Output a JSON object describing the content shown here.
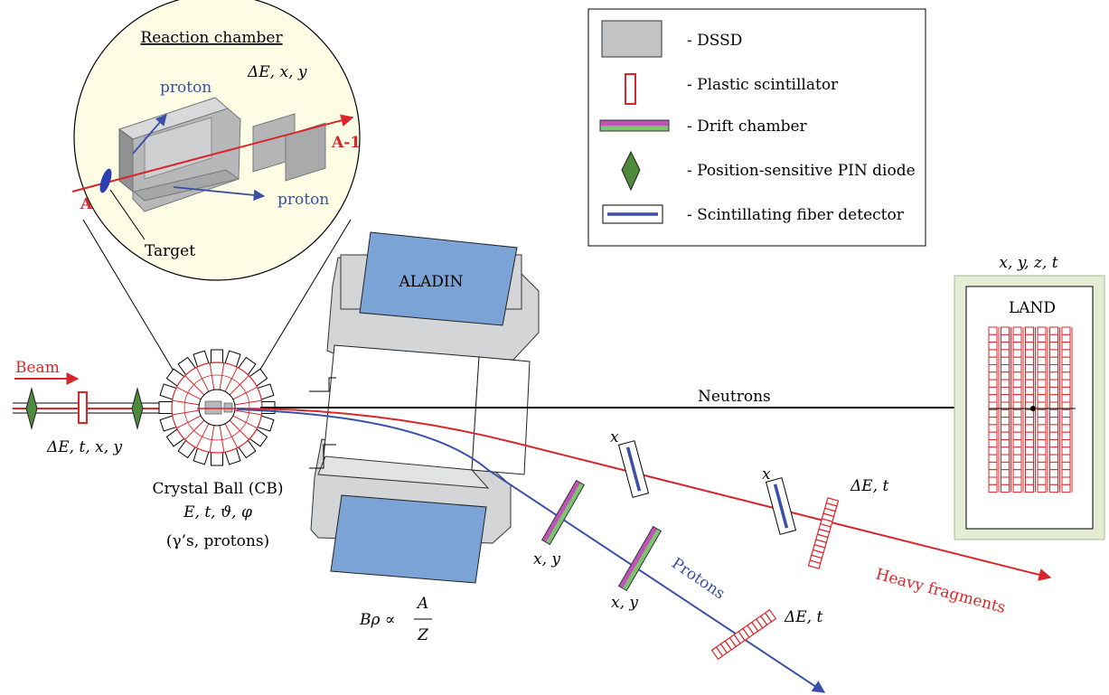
{
  "inset": {
    "title": "Reaction chamber",
    "proton_label": "proton",
    "de_xy_label": "ΔE, x, y",
    "beam_in_label": "A",
    "beam_out_label": "A-1",
    "target_label": "Target"
  },
  "legend": {
    "items": [
      {
        "label": "- DSSD"
      },
      {
        "label": "- Plastic scintillator"
      },
      {
        "label": "- Drift chamber"
      },
      {
        "label": "- Position-sensitive PIN diode"
      },
      {
        "label": "- Scintillating fiber detector"
      }
    ]
  },
  "beam": {
    "label": "Beam",
    "detectors_label": "ΔE, t, x, y"
  },
  "crystal_ball": {
    "name": "Crystal Ball (CB)",
    "quantities": "E, t, ϑ, φ",
    "particles": "(γ’s, protons)"
  },
  "magnet": {
    "name": "ALADIN",
    "rigidity_lhs": "Bρ ∝",
    "rigidity_num": "A",
    "rigidity_den": "Z"
  },
  "land": {
    "name": "LAND",
    "quantities": "x, y, z, t"
  },
  "tracks": {
    "neutrons": "Neutrons",
    "heavy_fragments": "Heavy fragments",
    "protons": "Protons"
  },
  "detector_labels": {
    "fiber_1_x": "x",
    "fiber_2_x": "x",
    "drift_1_xy": "x, y",
    "drift_2_xy": "x, y",
    "fragment_tof": "ΔE, t",
    "proton_tof": "ΔE, t"
  },
  "colors": {
    "beam_red": "#d8262a",
    "proton_blue": "#3a4fa8",
    "magnet_blue": "#7ba3d6",
    "dssd_gray": "#c3c4c6",
    "pin_green": "#4e8a3c",
    "land_frame_green": "#e4ecd6",
    "inset_fill": "#fdfde6"
  }
}
